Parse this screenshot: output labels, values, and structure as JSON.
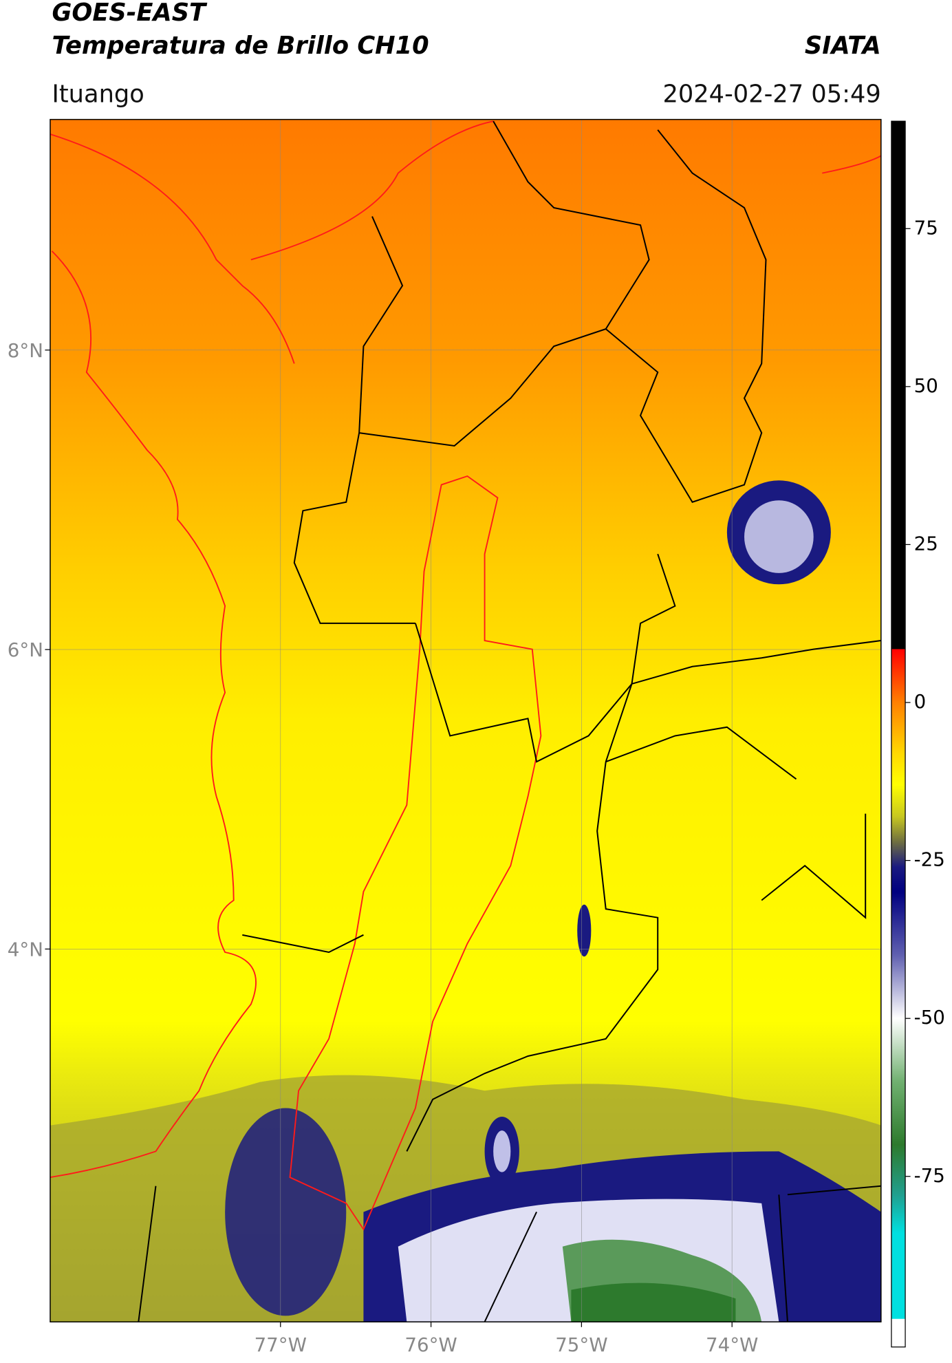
{
  "header": {
    "title_line1": "GOES-EAST",
    "title_line2": "Temperatura de Brillo CH10",
    "organization": "SIATA",
    "location": "Ituango",
    "datetime": "2024-02-27 05:49"
  },
  "map": {
    "xlim": [
      -78.53,
      -73.01
    ],
    "ylim": [
      1.51,
      9.54
    ],
    "xticks": [
      {
        "value": -77,
        "label": "77°W"
      },
      {
        "value": -76,
        "label": "76°W"
      },
      {
        "value": -75,
        "label": "75°W"
      },
      {
        "value": -74,
        "label": "74°W"
      }
    ],
    "yticks": [
      {
        "value": 8,
        "label": "8°N"
      },
      {
        "value": 6,
        "label": "6°N"
      },
      {
        "value": 4,
        "label": "4°N"
      }
    ],
    "grid": true
  },
  "colorbar": {
    "lim": [
      -102,
      92
    ],
    "ticks": [
      75,
      50,
      25,
      0,
      -25,
      -50,
      -75
    ],
    "colormap": [
      {
        "value": 92,
        "color": "#000000"
      },
      {
        "value": 8.5,
        "color": "#000000"
      },
      {
        "value": 8.4,
        "color": "#ff0000"
      },
      {
        "value": 0,
        "color": "#ff8000"
      },
      {
        "value": -8,
        "color": "#ffd800"
      },
      {
        "value": -13,
        "color": "#ffff00"
      },
      {
        "value": -18,
        "color": "#c8c820"
      },
      {
        "value": -22,
        "color": "#707040"
      },
      {
        "value": -26,
        "color": "#1a1a80"
      },
      {
        "value": -30,
        "color": "#000080"
      },
      {
        "value": -40,
        "color": "#6060b0"
      },
      {
        "value": -50,
        "color": "#ffffff"
      },
      {
        "value": -60,
        "color": "#70b070"
      },
      {
        "value": -70,
        "color": "#2d7a2d"
      },
      {
        "value": -78,
        "color": "#20a090"
      },
      {
        "value": -84,
        "color": "#00e0e0"
      },
      {
        "value": -97.5,
        "color": "#00e0e0"
      },
      {
        "value": -97.6,
        "color": "#ffffff"
      },
      {
        "value": -102,
        "color": "#ffffff"
      }
    ]
  }
}
